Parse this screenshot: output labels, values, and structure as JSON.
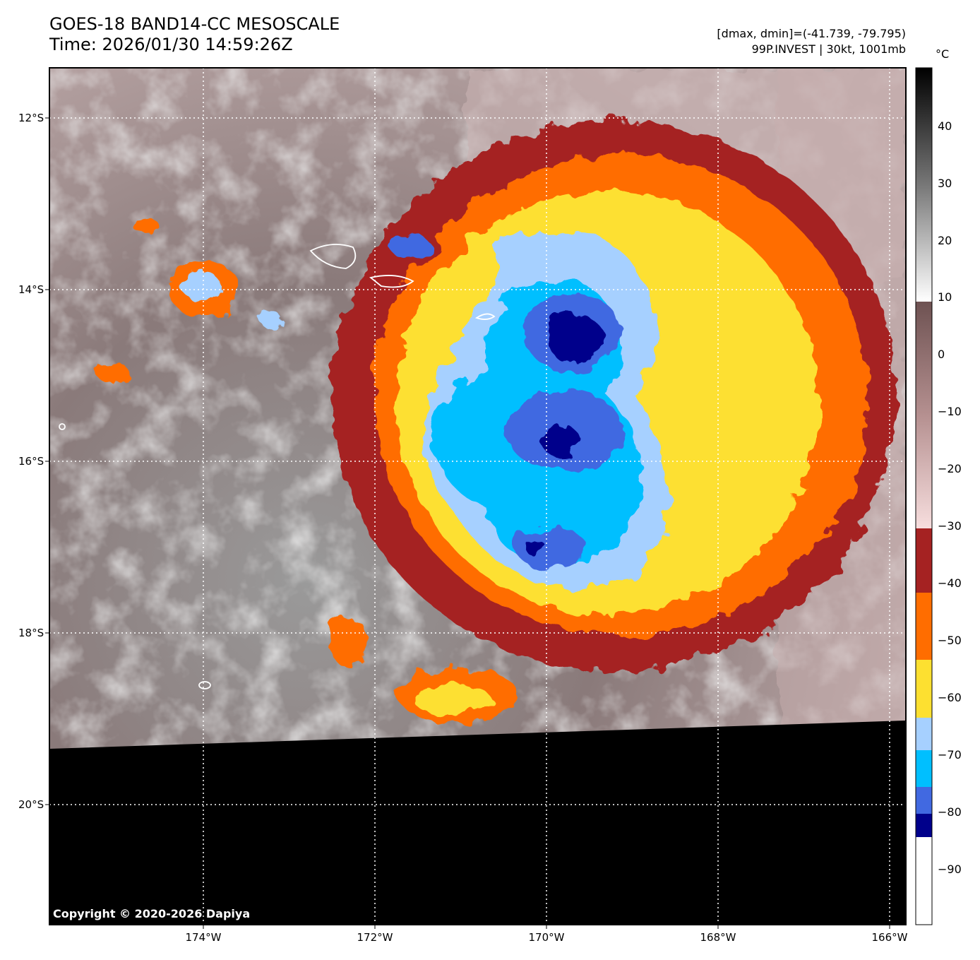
{
  "header": {
    "title_line1": "GOES-18 BAND14-CC MESOSCALE",
    "title_line2": "Time: 2026/01/30 14:59:26Z",
    "info_line1": "[dmax, dmin]=(-41.739, -79.795)",
    "info_line2": "99P.INVEST | 30kt, 1001mb"
  },
  "axes": {
    "lat_labels": [
      "12°S",
      "14°S",
      "16°S",
      "18°S",
      "20°S"
    ],
    "lon_labels": [
      "174°W",
      "172°W",
      "170°W",
      "168°W",
      "166°W"
    ]
  },
  "colorbar": {
    "unit": "°C",
    "ticks": [
      "40",
      "30",
      "20",
      "10",
      "0",
      "−10",
      "−20",
      "−30",
      "−40",
      "−50",
      "−60",
      "−70",
      "−80",
      "−90"
    ],
    "colors": {
      "c90": "#ffffff",
      "c80": "#00008b",
      "c75": "#4169e1",
      "c70": "#00bfff",
      "c65": "#a6d0ff",
      "c60": "#fde030",
      "c50": "#ff6d00",
      "c40": "#a52222",
      "warm_pink": "#f2d3d3",
      "warm_mauve": "#a07a7a",
      "warm_brown": "#6e5252",
      "gray_light": "#d8d8d8",
      "gray_mid": "#9a9a9a",
      "gray_dark": "#444444",
      "black": "#000000"
    }
  },
  "footer": {
    "copyright": "Copyright © 2020-2026 Dapiya"
  }
}
